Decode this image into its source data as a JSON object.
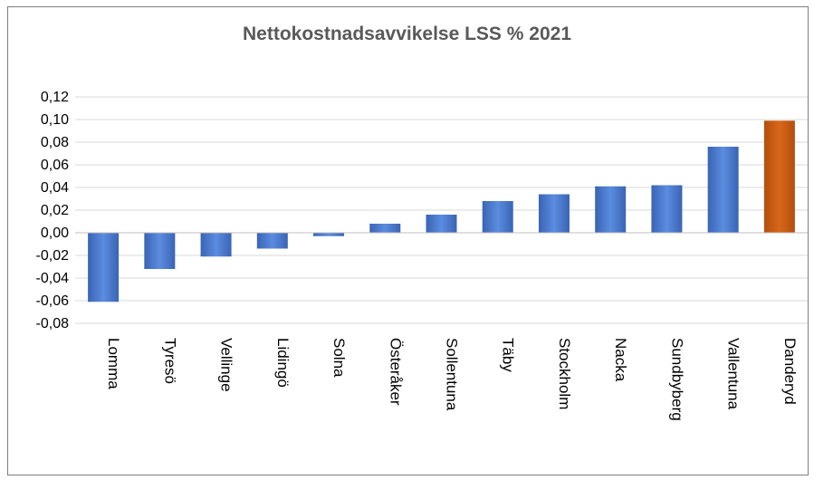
{
  "chart_data": {
    "type": "bar",
    "title": "Nettokostnadsavvikelse LSS % 2021",
    "xlabel": "",
    "ylabel": "",
    "categories": [
      "Lomma",
      "Tyresö",
      "Vellinge",
      "Lidingö",
      "Solna",
      "Österåker",
      "Sollentuna",
      "Täby",
      "Stockholm",
      "Nacka",
      "Sundbyberg",
      "Vallentuna",
      "Danderyd"
    ],
    "values": [
      -0.061,
      -0.032,
      -0.021,
      -0.014,
      -0.003,
      0.008,
      0.016,
      0.028,
      0.034,
      0.041,
      0.042,
      0.076,
      0.099
    ],
    "highlight_category": "Danderyd",
    "ylim": [
      -0.08,
      0.12
    ],
    "yticks": [
      "0,12",
      "0,10",
      "0,08",
      "0,06",
      "0,04",
      "0,02",
      "0,00",
      "-0,02",
      "-0,04",
      "-0,06",
      "-0,08"
    ],
    "grid": true,
    "colors": {
      "bar": "#4472c4",
      "highlight": "#c55a11",
      "grid": "#d9d9d9"
    }
  }
}
